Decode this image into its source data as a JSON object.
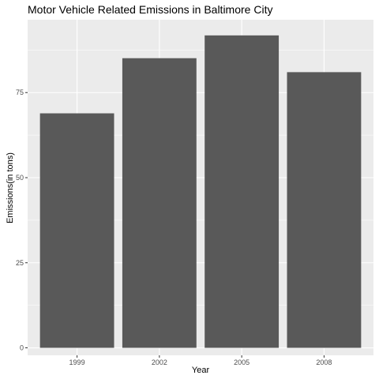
{
  "chart_data": {
    "type": "bar",
    "title": "Motor Vehicle Related Emissions in Baltimore City",
    "xlabel": "Year",
    "ylabel": "Emissions(in tons)",
    "categories": [
      "1999",
      "2002",
      "2005",
      "2008"
    ],
    "values": [
      68.9,
      85.1,
      91.8,
      81.0
    ],
    "ylim": [
      -2.2,
      96.4
    ],
    "yticks": [
      0,
      25,
      50,
      75
    ],
    "grid": true,
    "bar_color": "#595959",
    "panel_background": "#ebebeb",
    "gridline_color": "#ffffff"
  }
}
